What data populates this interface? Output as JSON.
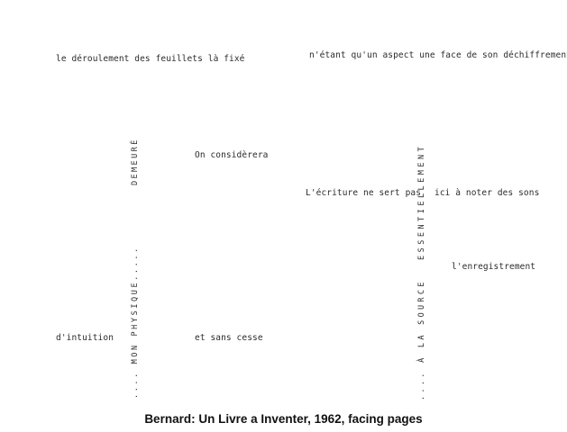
{
  "left_page": {
    "top_line": "le déroulement des feuillets là fixé",
    "vertical_upper": "DEMEURÉ",
    "vertical_lower": ".... MON PHYSIQUE.....",
    "mid_line": "On considèrera",
    "bottom_left": "d'intuition",
    "bottom_right": "et sans cesse"
  },
  "right_page": {
    "top_line": "n'étant qu'un aspect une face de son déchiffrement",
    "vertical_upper": "ESSENTIELLEMENT",
    "vertical_lower": ".... À LA SOURCE",
    "writing_line_a": "L'écriture ne sert pas",
    "writing_line_b": "ici à noter des sons",
    "recording_line": "l'enregistrement"
  },
  "caption": "Bernard: Un Livre a Inventer, 1962, facing pages"
}
